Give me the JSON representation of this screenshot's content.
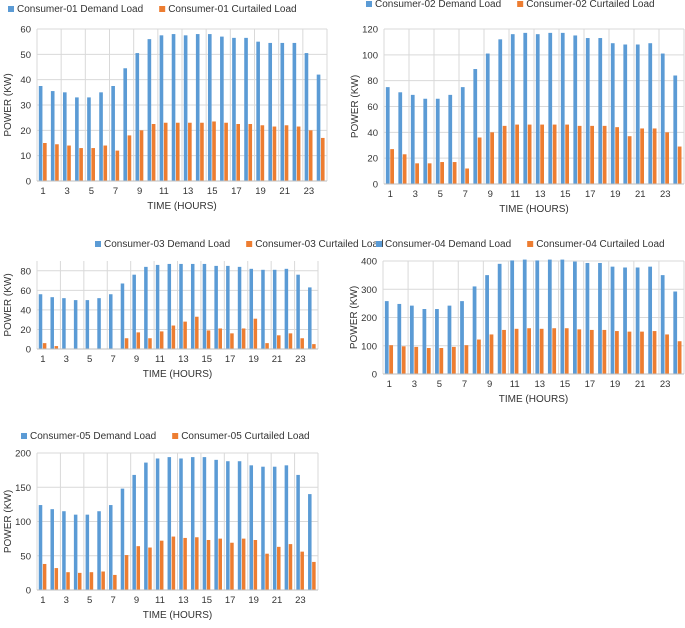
{
  "colors": {
    "demand": "#5b9bd5",
    "curtailed": "#ed7d31",
    "grid": "#d9d9d9",
    "text": "#333333"
  },
  "chart_data": [
    {
      "type": "bar",
      "title": "",
      "xlabel": "TIME (HOURS)",
      "ylabel": "POWER (KW)",
      "ylim": [
        0,
        60
      ],
      "yticks": [
        0,
        10,
        20,
        30,
        40,
        50,
        60
      ],
      "categories": [
        1,
        2,
        3,
        4,
        5,
        6,
        7,
        8,
        9,
        10,
        11,
        12,
        13,
        14,
        15,
        16,
        17,
        18,
        19,
        20,
        21,
        22,
        23,
        24
      ],
      "xtick_labels": [
        "1",
        "3",
        "5",
        "7",
        "9",
        "11",
        "13",
        "15",
        "17",
        "19",
        "21",
        "23"
      ],
      "series": [
        {
          "name": "Consumer-01 Demand Load",
          "values": [
            37.5,
            35.5,
            35,
            33,
            33,
            35,
            37.5,
            44.5,
            50.5,
            56,
            57.5,
            58,
            57.5,
            58,
            58,
            57,
            56.5,
            56.5,
            55,
            54.5,
            54.5,
            54.5,
            50.5,
            42
          ]
        },
        {
          "name": "Consumer-01 Curtailed Load",
          "values": [
            15,
            14.5,
            14,
            13,
            13,
            14,
            12,
            18,
            20,
            22.5,
            23,
            23,
            23,
            23,
            23.5,
            23,
            22.5,
            22.5,
            22,
            21.5,
            22,
            21.5,
            20,
            17
          ]
        }
      ]
    },
    {
      "type": "bar",
      "title": "",
      "xlabel": "TIME (HOURS)",
      "ylabel": "POWER (KW)",
      "ylim": [
        0,
        120
      ],
      "yticks": [
        0,
        20,
        40,
        60,
        80,
        100,
        120
      ],
      "categories": [
        1,
        2,
        3,
        4,
        5,
        6,
        7,
        8,
        9,
        10,
        11,
        12,
        13,
        14,
        15,
        16,
        17,
        18,
        19,
        20,
        21,
        22,
        23,
        24
      ],
      "xtick_labels": [
        "1",
        "3",
        "5",
        "7",
        "9",
        "11",
        "13",
        "15",
        "17",
        "19",
        "21",
        "23"
      ],
      "series": [
        {
          "name": "Consumer-02 Demand Load",
          "values": [
            75,
            71,
            69,
            66,
            66,
            69,
            75,
            89,
            101,
            112,
            116,
            117,
            116,
            117,
            117,
            115,
            113,
            113,
            109,
            108,
            108,
            109,
            101,
            84
          ]
        },
        {
          "name": "Consumer-02 Curtailed Load",
          "values": [
            27,
            23,
            16,
            16,
            17,
            17,
            12,
            36,
            40,
            45,
            46,
            46,
            46,
            46,
            46,
            45,
            45,
            45,
            44,
            37,
            43,
            43,
            40,
            29
          ]
        }
      ]
    },
    {
      "type": "bar",
      "title": "",
      "xlabel": "TIME (HOURS)",
      "ylabel": "POWER (KW)",
      "ylim": [
        0,
        90
      ],
      "yticks": [
        0,
        20,
        40,
        60,
        80
      ],
      "categories": [
        1,
        2,
        3,
        4,
        5,
        6,
        7,
        8,
        9,
        10,
        11,
        12,
        13,
        14,
        15,
        16,
        17,
        18,
        19,
        20,
        21,
        22,
        23,
        24
      ],
      "xtick_labels": [
        "1",
        "3",
        "5",
        "7",
        "9",
        "11",
        "13",
        "15",
        "17",
        "19",
        "21",
        "23"
      ],
      "series": [
        {
          "name": "Consumer-03 Demand Load",
          "values": [
            56,
            53,
            52,
            50,
            50,
            52,
            56,
            67,
            76,
            84,
            86,
            87,
            87,
            87,
            87,
            85,
            85,
            84,
            82,
            81,
            81,
            82,
            76,
            63
          ]
        },
        {
          "name": "Consumer-03 Curtailed Load",
          "values": [
            6,
            3,
            0,
            0,
            0,
            0,
            0,
            11,
            17,
            11,
            18,
            24,
            28,
            33,
            19,
            21,
            16,
            21,
            31,
            6,
            14,
            16,
            11,
            5
          ]
        }
      ]
    },
    {
      "type": "bar",
      "title": "",
      "xlabel": "TIME (HOURS)",
      "ylabel": "POWER (KW)",
      "ylim": [
        0,
        400
      ],
      "yticks": [
        0,
        100,
        200,
        300,
        400
      ],
      "categories": [
        1,
        2,
        3,
        4,
        5,
        6,
        7,
        8,
        9,
        10,
        11,
        12,
        13,
        14,
        15,
        16,
        17,
        18,
        19,
        20,
        21,
        22,
        23,
        24
      ],
      "xtick_labels": [
        "1",
        "3",
        "5",
        "7",
        "9",
        "11",
        "13",
        "15",
        "17",
        "19",
        "21",
        "23"
      ],
      "series": [
        {
          "name": "Consumer-04 Demand Load",
          "values": [
            258,
            248,
            242,
            230,
            230,
            242,
            258,
            310,
            350,
            390,
            402,
            405,
            402,
            405,
            405,
            398,
            393,
            393,
            380,
            377,
            377,
            380,
            350,
            292
          ]
        },
        {
          "name": "Consumer-04 Curtailed Load",
          "values": [
            102,
            98,
            96,
            92,
            92,
            96,
            102,
            122,
            140,
            156,
            160,
            162,
            160,
            162,
            162,
            158,
            156,
            156,
            152,
            150,
            150,
            152,
            140,
            116
          ]
        }
      ]
    },
    {
      "type": "bar",
      "title": "",
      "xlabel": "TIME (HOURS)",
      "ylabel": "POWER (KW)",
      "ylim": [
        0,
        200
      ],
      "yticks": [
        0,
        50,
        100,
        150,
        200
      ],
      "categories": [
        1,
        2,
        3,
        4,
        5,
        6,
        7,
        8,
        9,
        10,
        11,
        12,
        13,
        14,
        15,
        16,
        17,
        18,
        19,
        20,
        21,
        22,
        23,
        24
      ],
      "xtick_labels": [
        "1",
        "3",
        "5",
        "7",
        "9",
        "11",
        "13",
        "15",
        "17",
        "19",
        "21",
        "23"
      ],
      "series": [
        {
          "name": "Consumer-05 Demand Load",
          "values": [
            124,
            118,
            115,
            110,
            110,
            115,
            124,
            148,
            168,
            186,
            192,
            194,
            192,
            194,
            194,
            190,
            188,
            188,
            182,
            180,
            180,
            182,
            168,
            140
          ]
        },
        {
          "name": "Consumer-05 Curtailed Load",
          "values": [
            38,
            32,
            26,
            25,
            26,
            27,
            22,
            51,
            64,
            62,
            72,
            78,
            76,
            77,
            73,
            75,
            69,
            75,
            73,
            53,
            63,
            67,
            56,
            41
          ]
        }
      ]
    }
  ]
}
